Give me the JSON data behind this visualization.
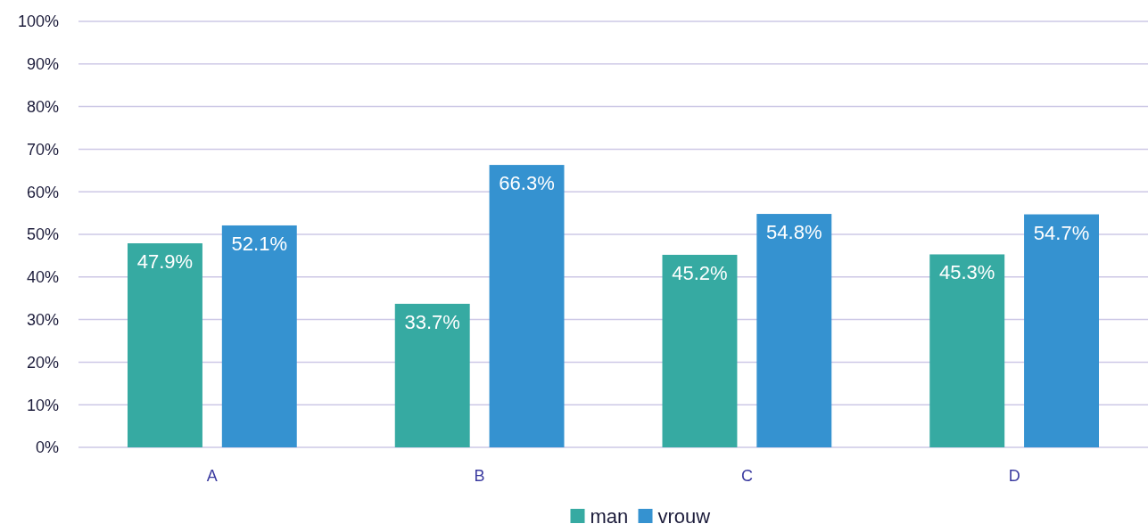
{
  "chart_data": {
    "type": "bar",
    "categories": [
      "A",
      "B",
      "C",
      "D"
    ],
    "series": [
      {
        "name": "man",
        "color": "#36aaa2",
        "values": [
          47.9,
          33.7,
          45.2,
          45.3
        ]
      },
      {
        "name": "vrouw",
        "color": "#3592d0",
        "values": [
          52.1,
          66.3,
          54.8,
          54.7
        ]
      }
    ],
    "ylim": [
      0,
      100
    ],
    "yticks": [
      {
        "value": 0,
        "label": "0%"
      },
      {
        "value": 10,
        "label": "10%"
      },
      {
        "value": 20,
        "label": "20%"
      },
      {
        "value": 30,
        "label": "30%"
      },
      {
        "value": 40,
        "label": "40%"
      },
      {
        "value": 50,
        "label": "50%"
      },
      {
        "value": 60,
        "label": "60%"
      },
      {
        "value": 70,
        "label": "70%"
      },
      {
        "value": 80,
        "label": "80%"
      },
      {
        "value": 90,
        "label": "90%"
      },
      {
        "value": 100,
        "label": "100%"
      }
    ],
    "value_labels": [
      [
        "47.9%",
        "33.7%",
        "45.2%",
        "45.3%"
      ],
      [
        "52.1%",
        "66.3%",
        "54.8%",
        "54.7%"
      ]
    ],
    "grid": "y",
    "legend": "bottom"
  }
}
